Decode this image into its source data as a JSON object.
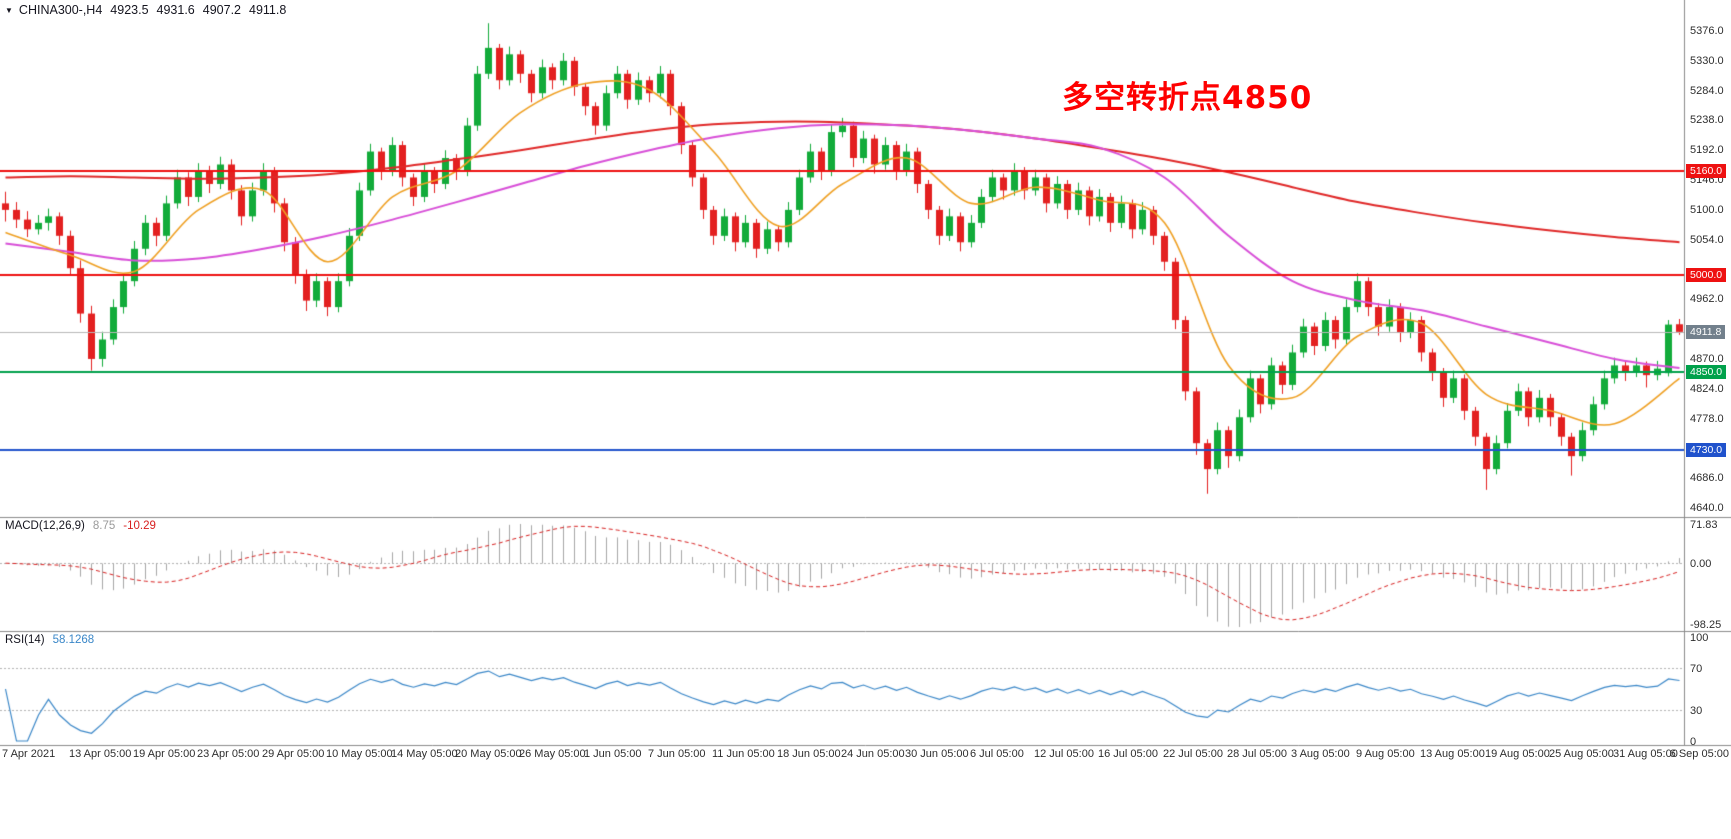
{
  "window": {
    "symbol_period": "CHINA300-,H4",
    "ohlc": {
      "open": "4923.5",
      "high": "4931.6",
      "low": "4907.2",
      "close": "4911.8"
    }
  },
  "annotation": {
    "text": "多空转折点4850",
    "color": "#fe0000"
  },
  "indicators": {
    "macd": {
      "label": "MACD(12,26,9)",
      "value_main": "8.75",
      "value_signal": "-10.29",
      "scale_labels": [
        "71.83",
        "0.00",
        "-98.25"
      ],
      "fast": 12,
      "slow": 26,
      "signal": 9,
      "hist_color": "#a6a6a6",
      "signal_color": "#d81f1f"
    },
    "rsi": {
      "label": "RSI(14)",
      "value": "58.1268",
      "scale_labels": [
        "100",
        "70",
        "30",
        "0"
      ],
      "levels": [
        70,
        30
      ],
      "period": 14,
      "line_color": "#3a87c8"
    }
  },
  "colors": {
    "bull": "#12ab3a",
    "bear": "#e32020",
    "bid_line": "#b8b8b8",
    "separator": "#8a8a8a",
    "axis_text": "#2e2e2e"
  },
  "chart_data": {
    "type": "candlestick",
    "symbol": "CHINA300-",
    "timeframe": "H4",
    "title": "CHINA300-,H4",
    "annotations": [
      "多空转折点4850"
    ],
    "grid": "off",
    "ylim": [
      4640,
      5376
    ],
    "y_ticks": [
      5376,
      5330,
      5284,
      5238,
      5192,
      5146,
      5100,
      5054,
      4962,
      4870,
      4824,
      4778,
      4686,
      4640
    ],
    "levels": [
      {
        "text": "5160.0",
        "value": 5160,
        "bg": "#ee1111"
      },
      {
        "text": "5000.0",
        "value": 5000,
        "bg": "#ee1111"
      },
      {
        "text": "4911.8",
        "value": 4911.8,
        "bg": "#72808c"
      },
      {
        "text": "4850.0",
        "value": 4850,
        "bg": "#00a14b"
      },
      {
        "text": "4730.0",
        "value": 4730,
        "bg": "#2052cc"
      }
    ],
    "hlines": [
      {
        "value": 5160,
        "color": "#ee1111",
        "width": 2
      },
      {
        "value": 5000,
        "color": "#ee1111",
        "width": 2
      },
      {
        "value": 4850,
        "color": "#00a14b",
        "width": 2
      },
      {
        "value": 4730,
        "color": "#2052cc",
        "width": 2
      }
    ],
    "current_price": 4911.8,
    "x_ticks": [
      {
        "text": "7 Apr 2021",
        "bar": 0
      },
      {
        "text": "13 Apr 05:00",
        "bar": 6
      },
      {
        "text": "19 Apr 05:00",
        "bar": 12
      },
      {
        "text": "23 Apr 05:00",
        "bar": 18
      },
      {
        "text": "29 Apr 05:00",
        "bar": 24
      },
      {
        "text": "10 May 05:00",
        "bar": 30
      },
      {
        "text": "14 May 05:00",
        "bar": 36
      },
      {
        "text": "20 May 05:00",
        "bar": 42
      },
      {
        "text": "26 May 05:00",
        "bar": 48
      },
      {
        "text": "1 Jun 05:00",
        "bar": 54
      },
      {
        "text": "7 Jun 05:00",
        "bar": 60
      },
      {
        "text": "11 Jun 05:00",
        "bar": 66
      },
      {
        "text": "18 Jun 05:00",
        "bar": 72
      },
      {
        "text": "24 Jun 05:00",
        "bar": 78
      },
      {
        "text": "30 Jun 05:00",
        "bar": 84
      },
      {
        "text": "6 Jul 05:00",
        "bar": 90
      },
      {
        "text": "12 Jul 05:00",
        "bar": 96
      },
      {
        "text": "16 Jul 05:00",
        "bar": 102
      },
      {
        "text": "22 Jul 05:00",
        "bar": 108
      },
      {
        "text": "28 Jul 05:00",
        "bar": 114
      },
      {
        "text": "3 Aug 05:00",
        "bar": 120
      },
      {
        "text": "9 Aug 05:00",
        "bar": 126
      },
      {
        "text": "13 Aug 05:00",
        "bar": 132
      },
      {
        "text": "19 Aug 05:00",
        "bar": 138
      },
      {
        "text": "25 Aug 05:00",
        "bar": 144
      },
      {
        "text": "31 Aug 05:00",
        "bar": 150
      },
      {
        "text": "6 Sep 05:00",
        "bar": 156
      }
    ],
    "ma_overlays": [
      {
        "name": "ma-slow",
        "color": "#e02828",
        "width": 2,
        "sample_step": 6,
        "values": [
          5150,
          5152,
          5150,
          5148,
          5150,
          5155,
          5165,
          5178,
          5192,
          5208,
          5222,
          5232,
          5236,
          5235,
          5230,
          5222,
          5210,
          5195,
          5178,
          5158,
          5135,
          5112,
          5095,
          5080,
          5068,
          5058,
          5050
        ]
      },
      {
        "name": "ma-medium",
        "color": "#d84fd8",
        "width": 2,
        "sample_step": 6,
        "values": [
          5048,
          5035,
          5022,
          5025,
          5040,
          5060,
          5085,
          5112,
          5140,
          5168,
          5192,
          5212,
          5226,
          5232,
          5230,
          5222,
          5210,
          5196,
          5150,
          5060,
          4990,
          4960,
          4945,
          4920,
          4895,
          4870,
          4856
        ]
      },
      {
        "name": "ma-fast",
        "color": "#efa023",
        "width": 1.6,
        "sample_step": 6,
        "values": [
          5065,
          5030,
          5005,
          5100,
          5130,
          5020,
          5120,
          5160,
          5250,
          5295,
          5285,
          5190,
          5075,
          5140,
          5180,
          5110,
          5135,
          5115,
          5080,
          4860,
          4810,
          4905,
          4925,
          4815,
          4790,
          4770,
          4840
        ]
      }
    ],
    "candles": [
      [
        5110,
        5128,
        5082,
        5100
      ],
      [
        5100,
        5112,
        5072,
        5085
      ],
      [
        5085,
        5098,
        5058,
        5070
      ],
      [
        5070,
        5092,
        5062,
        5080
      ],
      [
        5080,
        5102,
        5068,
        5090
      ],
      [
        5090,
        5096,
        5046,
        5060
      ],
      [
        5060,
        5068,
        4998,
        5010
      ],
      [
        5010,
        5022,
        4926,
        4940
      ],
      [
        4940,
        4952,
        4852,
        4870
      ],
      [
        4870,
        4912,
        4858,
        4900
      ],
      [
        4900,
        4962,
        4892,
        4950
      ],
      [
        4950,
        5002,
        4940,
        4990
      ],
      [
        4990,
        5052,
        4982,
        5040
      ],
      [
        5040,
        5092,
        5030,
        5080
      ],
      [
        5080,
        5088,
        5044,
        5060
      ],
      [
        5060,
        5122,
        5052,
        5110
      ],
      [
        5110,
        5162,
        5102,
        5150
      ],
      [
        5150,
        5158,
        5106,
        5120
      ],
      [
        5120,
        5172,
        5112,
        5160
      ],
      [
        5160,
        5168,
        5126,
        5140
      ],
      [
        5140,
        5182,
        5132,
        5170
      ],
      [
        5170,
        5178,
        5116,
        5130
      ],
      [
        5130,
        5138,
        5076,
        5090
      ],
      [
        5090,
        5142,
        5082,
        5130
      ],
      [
        5130,
        5172,
        5122,
        5160
      ],
      [
        5160,
        5166,
        5096,
        5110
      ],
      [
        5110,
        5118,
        5036,
        5050
      ],
      [
        5050,
        5058,
        4986,
        5000
      ],
      [
        5000,
        5008,
        4944,
        4960
      ],
      [
        4960,
        5002,
        4950,
        4990
      ],
      [
        4990,
        4996,
        4936,
        4950
      ],
      [
        4950,
        5002,
        4942,
        4990
      ],
      [
        4990,
        5072,
        4982,
        5060
      ],
      [
        5060,
        5142,
        5052,
        5130
      ],
      [
        5130,
        5202,
        5122,
        5190
      ],
      [
        5190,
        5196,
        5146,
        5160
      ],
      [
        5160,
        5212,
        5152,
        5200
      ],
      [
        5200,
        5206,
        5136,
        5150
      ],
      [
        5150,
        5156,
        5106,
        5120
      ],
      [
        5120,
        5172,
        5112,
        5160
      ],
      [
        5160,
        5166,
        5126,
        5140
      ],
      [
        5140,
        5192,
        5132,
        5180
      ],
      [
        5180,
        5186,
        5146,
        5160
      ],
      [
        5160,
        5242,
        5152,
        5230
      ],
      [
        5230,
        5322,
        5222,
        5310
      ],
      [
        5310,
        5388,
        5302,
        5350
      ],
      [
        5350,
        5356,
        5286,
        5300
      ],
      [
        5300,
        5352,
        5292,
        5340
      ],
      [
        5340,
        5346,
        5296,
        5310
      ],
      [
        5310,
        5316,
        5266,
        5280
      ],
      [
        5280,
        5332,
        5272,
        5320
      ],
      [
        5320,
        5326,
        5286,
        5300
      ],
      [
        5300,
        5342,
        5292,
        5330
      ],
      [
        5330,
        5336,
        5276,
        5290
      ],
      [
        5290,
        5296,
        5246,
        5260
      ],
      [
        5260,
        5266,
        5216,
        5230
      ],
      [
        5230,
        5292,
        5222,
        5280
      ],
      [
        5280,
        5322,
        5272,
        5310
      ],
      [
        5310,
        5316,
        5256,
        5270
      ],
      [
        5270,
        5312,
        5262,
        5300
      ],
      [
        5300,
        5306,
        5266,
        5280
      ],
      [
        5280,
        5322,
        5272,
        5310
      ],
      [
        5310,
        5316,
        5246,
        5260
      ],
      [
        5260,
        5266,
        5186,
        5200
      ],
      [
        5200,
        5206,
        5136,
        5150
      ],
      [
        5150,
        5156,
        5086,
        5100
      ],
      [
        5100,
        5106,
        5046,
        5060
      ],
      [
        5060,
        5102,
        5052,
        5090
      ],
      [
        5090,
        5096,
        5036,
        5050
      ],
      [
        5050,
        5092,
        5042,
        5080
      ],
      [
        5080,
        5086,
        5026,
        5040
      ],
      [
        5040,
        5082,
        5032,
        5070
      ],
      [
        5070,
        5076,
        5036,
        5050
      ],
      [
        5050,
        5112,
        5042,
        5100
      ],
      [
        5100,
        5162,
        5092,
        5150
      ],
      [
        5150,
        5202,
        5142,
        5190
      ],
      [
        5190,
        5196,
        5146,
        5160
      ],
      [
        5160,
        5232,
        5152,
        5220
      ],
      [
        5220,
        5242,
        5212,
        5230
      ],
      [
        5230,
        5236,
        5166,
        5180
      ],
      [
        5180,
        5222,
        5172,
        5210
      ],
      [
        5210,
        5216,
        5156,
        5170
      ],
      [
        5170,
        5212,
        5162,
        5200
      ],
      [
        5200,
        5206,
        5146,
        5160
      ],
      [
        5160,
        5202,
        5152,
        5190
      ],
      [
        5190,
        5196,
        5126,
        5140
      ],
      [
        5140,
        5146,
        5086,
        5100
      ],
      [
        5100,
        5106,
        5046,
        5060
      ],
      [
        5060,
        5102,
        5052,
        5090
      ],
      [
        5090,
        5096,
        5036,
        5050
      ],
      [
        5050,
        5092,
        5042,
        5080
      ],
      [
        5080,
        5132,
        5072,
        5120
      ],
      [
        5120,
        5162,
        5112,
        5150
      ],
      [
        5150,
        5156,
        5116,
        5130
      ],
      [
        5130,
        5172,
        5122,
        5160
      ],
      [
        5160,
        5166,
        5116,
        5130
      ],
      [
        5130,
        5162,
        5122,
        5150
      ],
      [
        5150,
        5156,
        5096,
        5110
      ],
      [
        5110,
        5152,
        5102,
        5140
      ],
      [
        5140,
        5146,
        5086,
        5100
      ],
      [
        5100,
        5142,
        5092,
        5130
      ],
      [
        5130,
        5136,
        5076,
        5090
      ],
      [
        5090,
        5132,
        5082,
        5120
      ],
      [
        5120,
        5126,
        5066,
        5080
      ],
      [
        5080,
        5122,
        5072,
        5110
      ],
      [
        5110,
        5116,
        5056,
        5070
      ],
      [
        5070,
        5112,
        5062,
        5100
      ],
      [
        5100,
        5106,
        5046,
        5060
      ],
      [
        5060,
        5066,
        5006,
        5020
      ],
      [
        5020,
        5026,
        4916,
        4930
      ],
      [
        4930,
        4936,
        4806,
        4820
      ],
      [
        4820,
        4826,
        4722,
        4740
      ],
      [
        4740,
        4746,
        4662,
        4700
      ],
      [
        4700,
        4772,
        4692,
        4760
      ],
      [
        4760,
        4766,
        4702,
        4720
      ],
      [
        4720,
        4792,
        4712,
        4780
      ],
      [
        4780,
        4852,
        4772,
        4840
      ],
      [
        4840,
        4846,
        4786,
        4800
      ],
      [
        4800,
        4872,
        4792,
        4860
      ],
      [
        4860,
        4866,
        4816,
        4830
      ],
      [
        4830,
        4892,
        4822,
        4880
      ],
      [
        4880,
        4932,
        4872,
        4920
      ],
      [
        4920,
        4926,
        4876,
        4890
      ],
      [
        4890,
        4942,
        4882,
        4930
      ],
      [
        4930,
        4936,
        4886,
        4900
      ],
      [
        4900,
        4962,
        4892,
        4950
      ],
      [
        4950,
        5002,
        4942,
        4990
      ],
      [
        4990,
        4996,
        4936,
        4950
      ],
      [
        4950,
        4956,
        4906,
        4920
      ],
      [
        4920,
        4962,
        4912,
        4950
      ],
      [
        4950,
        4956,
        4896,
        4910
      ],
      [
        4910,
        4942,
        4902,
        4930
      ],
      [
        4930,
        4936,
        4866,
        4880
      ],
      [
        4880,
        4886,
        4836,
        4850
      ],
      [
        4850,
        4856,
        4796,
        4810
      ],
      [
        4810,
        4852,
        4802,
        4840
      ],
      [
        4840,
        4846,
        4776,
        4790
      ],
      [
        4790,
        4796,
        4736,
        4750
      ],
      [
        4750,
        4756,
        4668,
        4700
      ],
      [
        4700,
        4752,
        4692,
        4740
      ],
      [
        4740,
        4802,
        4732,
        4790
      ],
      [
        4790,
        4832,
        4782,
        4820
      ],
      [
        4820,
        4826,
        4766,
        4780
      ],
      [
        4780,
        4822,
        4772,
        4810
      ],
      [
        4810,
        4816,
        4766,
        4780
      ],
      [
        4780,
        4786,
        4736,
        4750
      ],
      [
        4750,
        4756,
        4690,
        4720
      ],
      [
        4720,
        4772,
        4712,
        4760
      ],
      [
        4760,
        4812,
        4752,
        4800
      ],
      [
        4800,
        4852,
        4792,
        4840
      ],
      [
        4840,
        4872,
        4832,
        4860
      ],
      [
        4860,
        4866,
        4836,
        4850
      ],
      [
        4850,
        4872,
        4842,
        4860
      ],
      [
        4860,
        4866,
        4826,
        4845
      ],
      [
        4845,
        4867,
        4837,
        4855
      ],
      [
        4848,
        4930,
        4843,
        4923
      ],
      [
        4923.5,
        4931.6,
        4907.2,
        4911.8
      ]
    ]
  }
}
